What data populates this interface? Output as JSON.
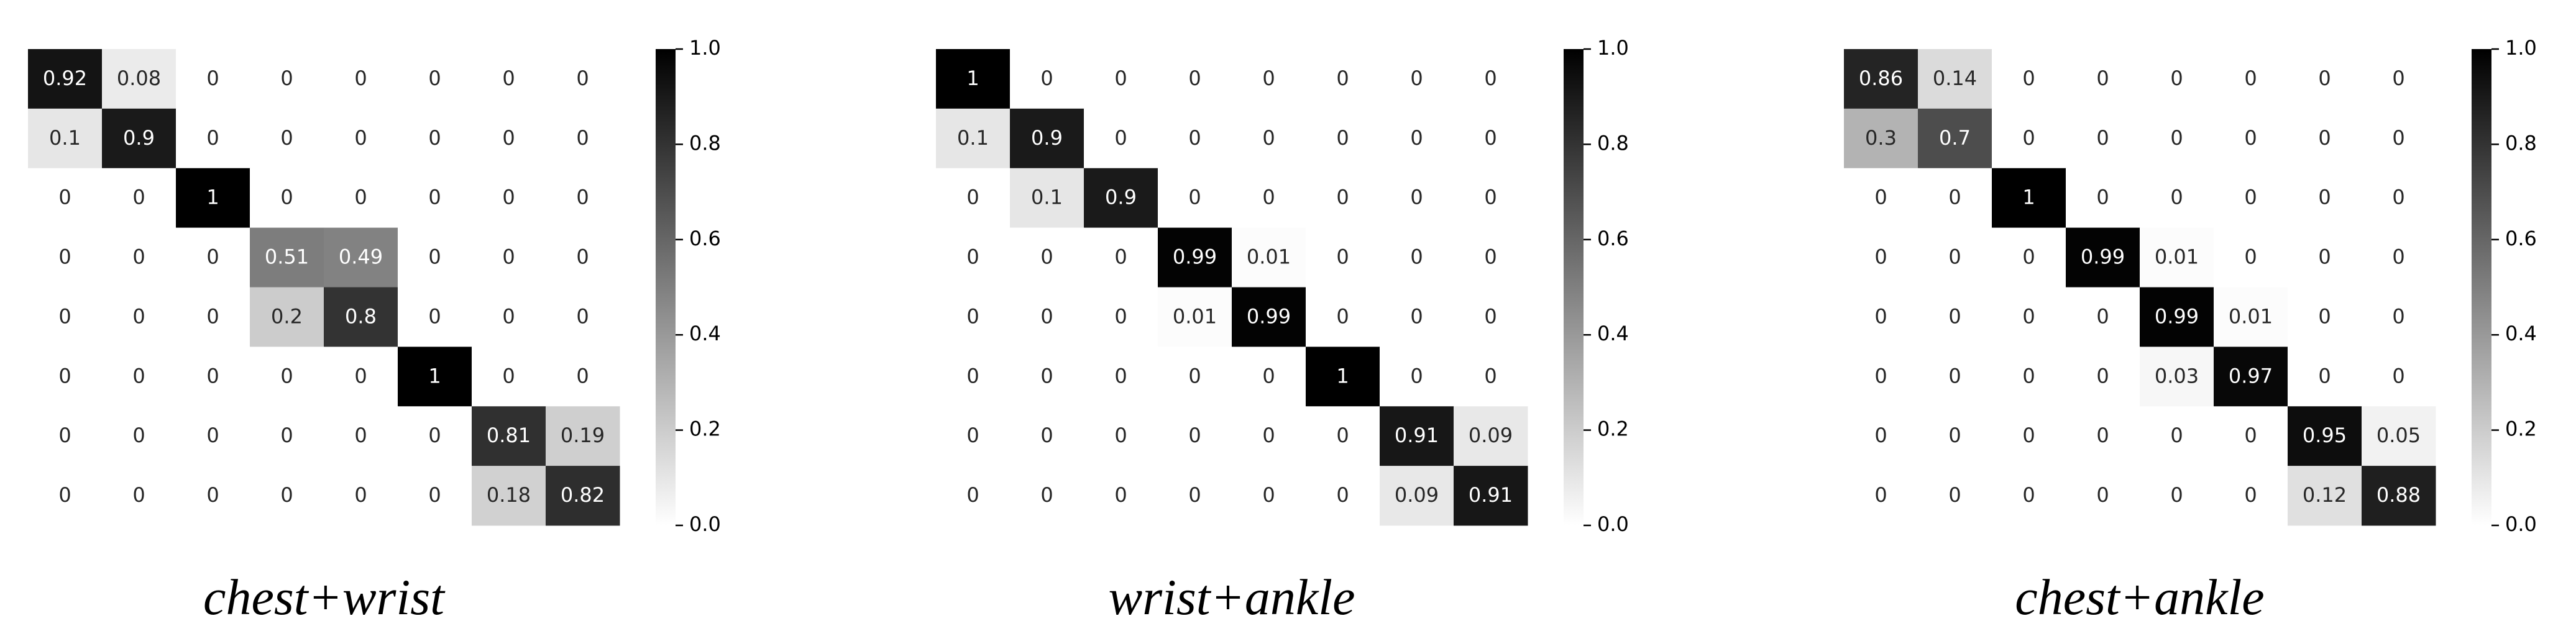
{
  "chart_data": [
    {
      "type": "heatmap",
      "title": "chest+wrist",
      "colors": [
        "#ffffff",
        "#000000"
      ],
      "zlim": [
        0,
        1
      ],
      "zticks": [
        {
          "value": 0,
          "label": "0.0"
        },
        0.2,
        0.4,
        0.6,
        0.8,
        {
          "value": 1,
          "label": "1.0"
        }
      ],
      "values": [
        [
          0.92,
          0.08,
          0,
          0,
          0,
          0,
          0,
          0
        ],
        [
          0.1,
          0.9,
          0,
          0,
          0,
          0,
          0,
          0
        ],
        [
          0,
          0,
          1,
          0,
          0,
          0,
          0,
          0
        ],
        [
          0,
          0,
          0,
          0.51,
          0.49,
          0,
          0,
          0
        ],
        [
          0,
          0,
          0,
          0.2,
          0.8,
          0,
          0,
          0
        ],
        [
          0,
          0,
          0,
          0,
          0,
          1,
          0,
          0
        ],
        [
          0,
          0,
          0,
          0,
          0,
          0,
          0.81,
          0.19
        ],
        [
          0,
          0,
          0,
          0,
          0,
          0,
          0.18,
          0.82
        ]
      ]
    },
    {
      "type": "heatmap",
      "title": "wrist+ankle",
      "colors": [
        "#ffffff",
        "#000000"
      ],
      "zlim": [
        0,
        1
      ],
      "zticks": [
        {
          "value": 0,
          "label": "0.0"
        },
        0.2,
        0.4,
        0.6,
        0.8,
        {
          "value": 1,
          "label": "1.0"
        }
      ],
      "values": [
        [
          1,
          0,
          0,
          0,
          0,
          0,
          0,
          0
        ],
        [
          0.1,
          0.9,
          0,
          0,
          0,
          0,
          0,
          0
        ],
        [
          0,
          0.1,
          0.9,
          0,
          0,
          0,
          0,
          0
        ],
        [
          0,
          0,
          0,
          0.99,
          0.01,
          0,
          0,
          0
        ],
        [
          0,
          0,
          0,
          0.01,
          0.99,
          0,
          0,
          0
        ],
        [
          0,
          0,
          0,
          0,
          0,
          1,
          0,
          0
        ],
        [
          0,
          0,
          0,
          0,
          0,
          0,
          0.91,
          0.09
        ],
        [
          0,
          0,
          0,
          0,
          0,
          0,
          0.09,
          0.91
        ]
      ]
    },
    {
      "type": "heatmap",
      "title": "chest+ankle",
      "colors": [
        "#ffffff",
        "#000000"
      ],
      "zlim": [
        0,
        1
      ],
      "zticks": [
        {
          "value": 0,
          "label": "0.0"
        },
        0.2,
        0.4,
        0.6,
        0.8,
        {
          "value": 1,
          "label": "1.0"
        }
      ],
      "values": [
        [
          0.86,
          0.14,
          0,
          0,
          0,
          0,
          0,
          0
        ],
        [
          0.3,
          0.7,
          0,
          0,
          0,
          0,
          0,
          0
        ],
        [
          0,
          0,
          1,
          0,
          0,
          0,
          0,
          0
        ],
        [
          0,
          0,
          0,
          0.99,
          0.01,
          0,
          0,
          0
        ],
        [
          0,
          0,
          0,
          0,
          0.99,
          0.01,
          0,
          0
        ],
        [
          0,
          0,
          0,
          0,
          0.03,
          0.97,
          0,
          0
        ],
        [
          0,
          0,
          0,
          0,
          0,
          0,
          0.95,
          0.05
        ],
        [
          0,
          0,
          0,
          0,
          0,
          0,
          0.12,
          0.88
        ]
      ]
    }
  ]
}
